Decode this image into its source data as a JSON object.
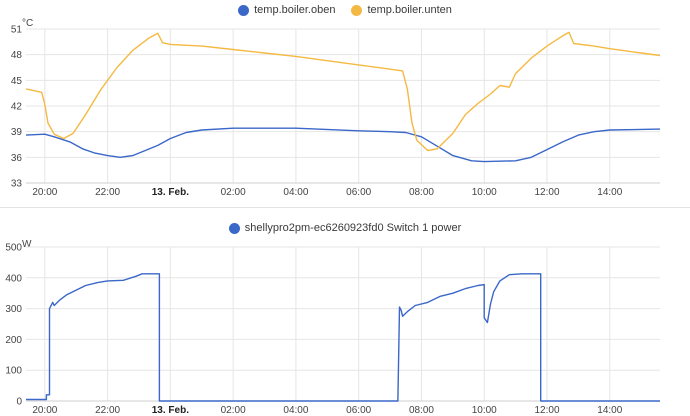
{
  "chart_data": [
    {
      "type": "line",
      "title": "",
      "ylabel": "°C",
      "xlabel": "",
      "ylim": [
        33,
        51
      ],
      "yticks": [
        "33",
        "36",
        "39",
        "42",
        "45",
        "48",
        "51"
      ],
      "xticks": [
        {
          "h": 0,
          "label": "20:00",
          "bold": false
        },
        {
          "h": 2,
          "label": "22:00",
          "bold": false
        },
        {
          "h": 4,
          "label": "13. Feb.",
          "bold": true
        },
        {
          "h": 6,
          "label": "02:00",
          "bold": false
        },
        {
          "h": 8,
          "label": "04:00",
          "bold": false
        },
        {
          "h": 10,
          "label": "06:00",
          "bold": false
        },
        {
          "h": 12,
          "label": "08:00",
          "bold": false
        },
        {
          "h": 14,
          "label": "10:00",
          "bold": false
        },
        {
          "h": 16,
          "label": "12:00",
          "bold": false
        },
        {
          "h": 18,
          "label": "14:00",
          "bold": false
        }
      ],
      "x_unit": "hours since 20:00 (12 Feb)",
      "xlim": [
        -0.6,
        19.6
      ],
      "grid": true,
      "legend_position": "top-center",
      "series": [
        {
          "name": "temp.boiler.oben",
          "color": "#3a67c8",
          "points": [
            [
              -0.6,
              38.6
            ],
            [
              0,
              38.7
            ],
            [
              0.3,
              38.4
            ],
            [
              0.8,
              37.8
            ],
            [
              1.2,
              37.0
            ],
            [
              1.6,
              36.5
            ],
            [
              2.0,
              36.2
            ],
            [
              2.4,
              36.0
            ],
            [
              2.8,
              36.2
            ],
            [
              3.2,
              36.8
            ],
            [
              3.6,
              37.4
            ],
            [
              4.0,
              38.2
            ],
            [
              4.5,
              38.9
            ],
            [
              5.0,
              39.2
            ],
            [
              6.0,
              39.4
            ],
            [
              8.0,
              39.4
            ],
            [
              10.0,
              39.1
            ],
            [
              11.0,
              39.0
            ],
            [
              11.5,
              38.9
            ],
            [
              12.0,
              38.4
            ],
            [
              12.5,
              37.3
            ],
            [
              13.0,
              36.2
            ],
            [
              13.6,
              35.6
            ],
            [
              14.0,
              35.5
            ],
            [
              15.0,
              35.6
            ],
            [
              15.5,
              36.0
            ],
            [
              16.0,
              36.9
            ],
            [
              16.5,
              37.8
            ],
            [
              17.0,
              38.6
            ],
            [
              17.5,
              39.0
            ],
            [
              18.0,
              39.2
            ],
            [
              19.6,
              39.3
            ]
          ]
        },
        {
          "name": "temp.boiler.unten",
          "color": "#f4b942",
          "points": [
            [
              -0.6,
              44.0
            ],
            [
              -0.1,
              43.6
            ],
            [
              0,
              42.2
            ],
            [
              0.1,
              40.0
            ],
            [
              0.3,
              38.7
            ],
            [
              0.6,
              38.2
            ],
            [
              0.9,
              38.8
            ],
            [
              1.3,
              41.0
            ],
            [
              1.8,
              44.0
            ],
            [
              2.3,
              46.5
            ],
            [
              2.8,
              48.5
            ],
            [
              3.3,
              49.9
            ],
            [
              3.6,
              50.5
            ],
            [
              3.75,
              49.4
            ],
            [
              4.0,
              49.2
            ],
            [
              5.0,
              49.0
            ],
            [
              6.0,
              48.6
            ],
            [
              7.0,
              48.2
            ],
            [
              8.0,
              47.8
            ],
            [
              9.0,
              47.3
            ],
            [
              10.0,
              46.8
            ],
            [
              11.0,
              46.3
            ],
            [
              11.4,
              46.1
            ],
            [
              11.55,
              44.0
            ],
            [
              11.7,
              40.0
            ],
            [
              11.85,
              38.0
            ],
            [
              12.2,
              36.8
            ],
            [
              12.5,
              37.0
            ],
            [
              13.0,
              38.8
            ],
            [
              13.4,
              41.0
            ],
            [
              13.8,
              42.3
            ],
            [
              14.2,
              43.4
            ],
            [
              14.5,
              44.4
            ],
            [
              14.8,
              44.2
            ],
            [
              15.0,
              45.8
            ],
            [
              15.5,
              47.6
            ],
            [
              16.0,
              49.0
            ],
            [
              16.5,
              50.2
            ],
            [
              16.7,
              50.6
            ],
            [
              16.85,
              49.3
            ],
            [
              17.5,
              49.0
            ],
            [
              18.0,
              48.7
            ],
            [
              19.0,
              48.2
            ],
            [
              19.6,
              47.9
            ]
          ]
        }
      ]
    },
    {
      "type": "line",
      "title": "",
      "ylabel": "W",
      "xlabel": "",
      "ylim": [
        0,
        500
      ],
      "yticks": [
        "0",
        "100",
        "200",
        "300",
        "400",
        "500"
      ],
      "xticks": [
        {
          "h": 0,
          "label": "20:00",
          "bold": false
        },
        {
          "h": 2,
          "label": "22:00",
          "bold": false
        },
        {
          "h": 4,
          "label": "13. Feb.",
          "bold": true
        },
        {
          "h": 6,
          "label": "02:00",
          "bold": false
        },
        {
          "h": 8,
          "label": "04:00",
          "bold": false
        },
        {
          "h": 10,
          "label": "06:00",
          "bold": false
        },
        {
          "h": 12,
          "label": "08:00",
          "bold": false
        },
        {
          "h": 14,
          "label": "10:00",
          "bold": false
        },
        {
          "h": 16,
          "label": "12:00",
          "bold": false
        },
        {
          "h": 18,
          "label": "14:00",
          "bold": false
        }
      ],
      "x_unit": "hours since 20:00 (12 Feb)",
      "xlim": [
        -0.6,
        19.6
      ],
      "grid": true,
      "legend_position": "top-center",
      "series": [
        {
          "name": "shellypro2pm-ec6260923fd0 Switch 1 power",
          "color": "#3a67c8",
          "points": [
            [
              -0.6,
              5
            ],
            [
              0.05,
              5
            ],
            [
              0.05,
              20
            ],
            [
              0.15,
              20
            ],
            [
              0.15,
              300
            ],
            [
              0.25,
              320
            ],
            [
              0.3,
              310
            ],
            [
              0.4,
              320
            ],
            [
              0.5,
              330
            ],
            [
              0.7,
              345
            ],
            [
              1.0,
              360
            ],
            [
              1.3,
              375
            ],
            [
              1.7,
              385
            ],
            [
              2.0,
              390
            ],
            [
              2.5,
              392
            ],
            [
              2.9,
              405
            ],
            [
              3.1,
              413
            ],
            [
              3.65,
              413
            ],
            [
              3.65,
              0
            ],
            [
              11.25,
              0
            ],
            [
              11.25,
              5
            ],
            [
              11.3,
              305
            ],
            [
              11.35,
              295
            ],
            [
              11.4,
              275
            ],
            [
              11.55,
              290
            ],
            [
              11.8,
              310
            ],
            [
              12.2,
              320
            ],
            [
              12.6,
              340
            ],
            [
              13.0,
              350
            ],
            [
              13.4,
              365
            ],
            [
              13.8,
              375
            ],
            [
              14.0,
              378
            ],
            [
              14.0,
              270
            ],
            [
              14.1,
              255
            ],
            [
              14.2,
              315
            ],
            [
              14.3,
              355
            ],
            [
              14.5,
              390
            ],
            [
              14.8,
              410
            ],
            [
              15.2,
              413
            ],
            [
              15.8,
              413
            ],
            [
              15.8,
              0
            ],
            [
              19.6,
              0
            ]
          ]
        }
      ]
    }
  ]
}
